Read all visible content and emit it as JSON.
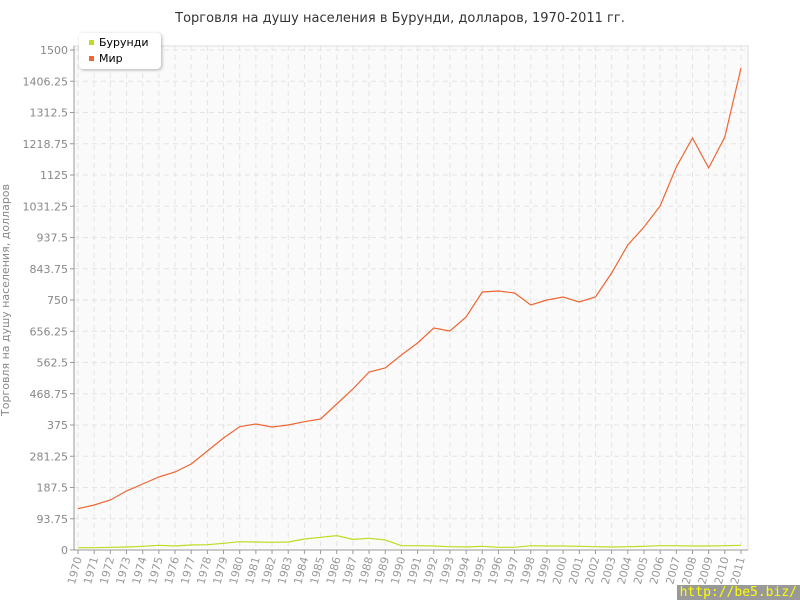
{
  "chart_data": {
    "type": "line",
    "title": "Торговля на душу населения в Бурунди, долларов, 1970-2011 гг.",
    "xlabel": "",
    "ylabel": "Торговля на душу населения, долларов",
    "ylim": [
      0,
      1500
    ],
    "yticks": [
      "0",
      "93.75",
      "187.5",
      "281.25",
      "375",
      "468.75",
      "562.5",
      "656.25",
      "750",
      "843.75",
      "937.5",
      "1031.25",
      "1125",
      "1218.75",
      "1312.5",
      "1406.25",
      "1500"
    ],
    "x": [
      1970,
      1971,
      1972,
      1973,
      1974,
      1975,
      1976,
      1977,
      1978,
      1979,
      1980,
      1981,
      1982,
      1983,
      1984,
      1985,
      1986,
      1987,
      1988,
      1989,
      1990,
      1991,
      1992,
      1993,
      1994,
      1995,
      1996,
      1997,
      1998,
      1999,
      2000,
      2001,
      2002,
      2003,
      2004,
      2005,
      2006,
      2007,
      2008,
      2009,
      2010,
      2011
    ],
    "grid": true,
    "legend_position": "top-left",
    "series": [
      {
        "name": "Бурунди",
        "color": "#bbdd22",
        "values": [
          7,
          7,
          8,
          9,
          11,
          14,
          12,
          15,
          16,
          20,
          25,
          24,
          23,
          24,
          33,
          38,
          43,
          32,
          35,
          30,
          13,
          13,
          12,
          10,
          9,
          11,
          8,
          8,
          13,
          12,
          12,
          11,
          10,
          9,
          10,
          11,
          13,
          13,
          12,
          12,
          13,
          14
        ]
      },
      {
        "name": "Мир",
        "color": "#ee6633",
        "values": [
          124,
          135,
          150,
          177,
          198,
          219,
          234,
          258,
          297,
          336,
          370,
          378,
          369,
          375,
          385,
          393,
          438,
          483,
          534,
          546,
          585,
          621,
          666,
          657,
          699,
          774,
          777,
          771,
          735,
          750,
          759,
          744,
          759,
          831,
          915,
          969,
          1032,
          1149,
          1236,
          1146,
          1239,
          1446
        ]
      }
    ]
  },
  "watermark": "http://be5.biz/"
}
